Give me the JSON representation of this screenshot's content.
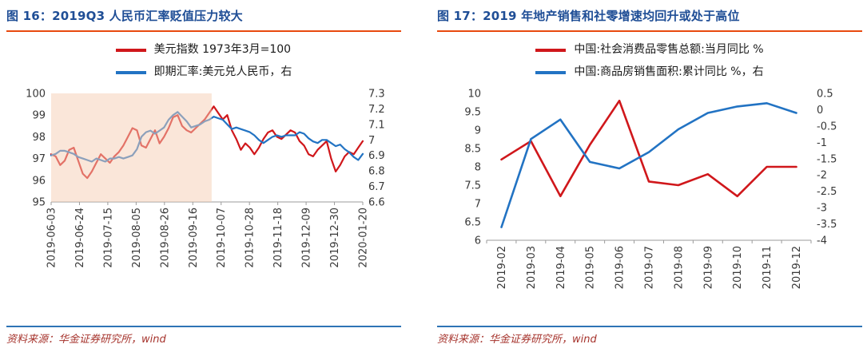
{
  "page": {
    "title_color": "#1F4E96",
    "title_rule_color": "#E8490F",
    "source_rule_color": "#2E74B5",
    "source_color": "#A6342D"
  },
  "figures": [
    {
      "caption": "图 16：2019Q3 人民币汇率贬值压力较大",
      "source": "资料来源：华金证券研究所，wind"
    },
    {
      "caption": "图 17：2019 年地产销售和社零增速均回升或处于高位",
      "source": "资料来源：华金证券研究所，wind"
    }
  ],
  "chart_data": [
    {
      "type": "line",
      "title": "2019Q3 人民币汇率贬值压力较大",
      "grid": false,
      "legend_position": "top",
      "x_labels": [
        "2019-06-03",
        "2019-06-24",
        "2019-07-15",
        "2019-08-05",
        "2019-08-26",
        "2019-09-16",
        "2019-10-07",
        "2019-10-28",
        "2019-11-18",
        "2019-12-09",
        "2019-12-30",
        "2020-01-20"
      ],
      "left_axis": {
        "min": 95,
        "max": 100,
        "tick_labels": [
          "100",
          "99",
          "98",
          "97",
          "96",
          "95"
        ]
      },
      "right_axis": {
        "min": 6.6,
        "max": 7.3,
        "tick_labels": [
          "7.3",
          "7.2",
          "7.1",
          "7",
          "6.9",
          "6.8",
          "6.7",
          "6.6"
        ]
      },
      "highlight_band": {
        "x_start_frac": 0,
        "x_end_frac": 0.515,
        "color": "#F6CDB4",
        "opacity": 0.5
      },
      "series": [
        {
          "name": "美元指数 1973年3月=100",
          "axis": "left",
          "color": "#D0171B",
          "values": [
            97.2,
            97.1,
            96.7,
            96.9,
            97.4,
            97.5,
            96.9,
            96.3,
            96.1,
            96.4,
            96.8,
            97.2,
            97.0,
            96.8,
            97.1,
            97.3,
            97.6,
            98.0,
            98.4,
            98.3,
            97.6,
            97.5,
            97.9,
            98.3,
            97.7,
            98.0,
            98.4,
            98.9,
            99.0,
            98.5,
            98.3,
            98.2,
            98.4,
            98.6,
            98.8,
            99.1,
            99.4,
            99.1,
            98.8,
            99.0,
            98.3,
            97.9,
            97.4,
            97.7,
            97.5,
            97.2,
            97.5,
            97.9,
            98.2,
            98.3,
            98.0,
            97.9,
            98.1,
            98.3,
            98.2,
            97.8,
            97.6,
            97.2,
            97.1,
            97.4,
            97.6,
            97.8,
            97.0,
            96.4,
            96.7,
            97.1,
            97.3,
            97.2,
            97.5,
            97.8
          ]
        },
        {
          "name": "即期汇率:美元兑人民币，右",
          "axis": "right",
          "color": "#2273C3",
          "values": [
            6.9,
            6.91,
            6.93,
            6.93,
            6.92,
            6.91,
            6.89,
            6.88,
            6.87,
            6.86,
            6.88,
            6.87,
            6.86,
            6.88,
            6.88,
            6.89,
            6.88,
            6.89,
            6.9,
            6.94,
            7.02,
            7.05,
            7.06,
            7.04,
            7.06,
            7.08,
            7.13,
            7.16,
            7.18,
            7.15,
            7.12,
            7.08,
            7.09,
            7.1,
            7.12,
            7.13,
            7.15,
            7.14,
            7.13,
            7.1,
            7.07,
            7.08,
            7.07,
            7.06,
            7.05,
            7.03,
            7.0,
            6.98,
            7.0,
            7.02,
            7.03,
            7.02,
            7.03,
            7.03,
            7.03,
            7.05,
            7.04,
            7.01,
            6.99,
            6.98,
            7.0,
            7.0,
            6.98,
            6.96,
            6.97,
            6.94,
            6.92,
            6.89,
            6.87,
            6.91
          ]
        }
      ]
    },
    {
      "type": "line",
      "title": "2019 年地产销售和社零增速均回升或处于高位",
      "grid": false,
      "legend_position": "top",
      "categorical": true,
      "x_labels": [
        "2019-02",
        "2019-03",
        "2019-04",
        "2019-05",
        "2019-06",
        "2019-07",
        "2019-08",
        "2019-09",
        "2019-10",
        "2019-11",
        "2019-12"
      ],
      "left_axis": {
        "min": 6,
        "max": 10,
        "tick_labels": [
          "10",
          "9.5",
          "9",
          "8.5",
          "8",
          "7.5",
          "7",
          "6.5",
          "6"
        ]
      },
      "right_axis": {
        "min": -4,
        "max": 0.5,
        "tick_labels": [
          "0.5",
          "0",
          "-0.5",
          "-1",
          "-1.5",
          "-2",
          "-2.5",
          "-3",
          "-3.5",
          "-4"
        ]
      },
      "series": [
        {
          "name": "中国:社会消费品零售总额:当月同比 %",
          "axis": "left",
          "color": "#D0171B",
          "values": [
            8.2,
            8.7,
            7.2,
            8.6,
            9.8,
            7.6,
            7.5,
            7.8,
            7.2,
            8.0,
            8.0
          ]
        },
        {
          "name": "中国:商品房销售面积:累计同比 %，右",
          "axis": "right",
          "color": "#2273C3",
          "values": [
            -3.6,
            -0.9,
            -0.3,
            -1.6,
            -1.8,
            -1.3,
            -0.6,
            -0.1,
            0.1,
            0.2,
            -0.1
          ]
        }
      ]
    }
  ]
}
